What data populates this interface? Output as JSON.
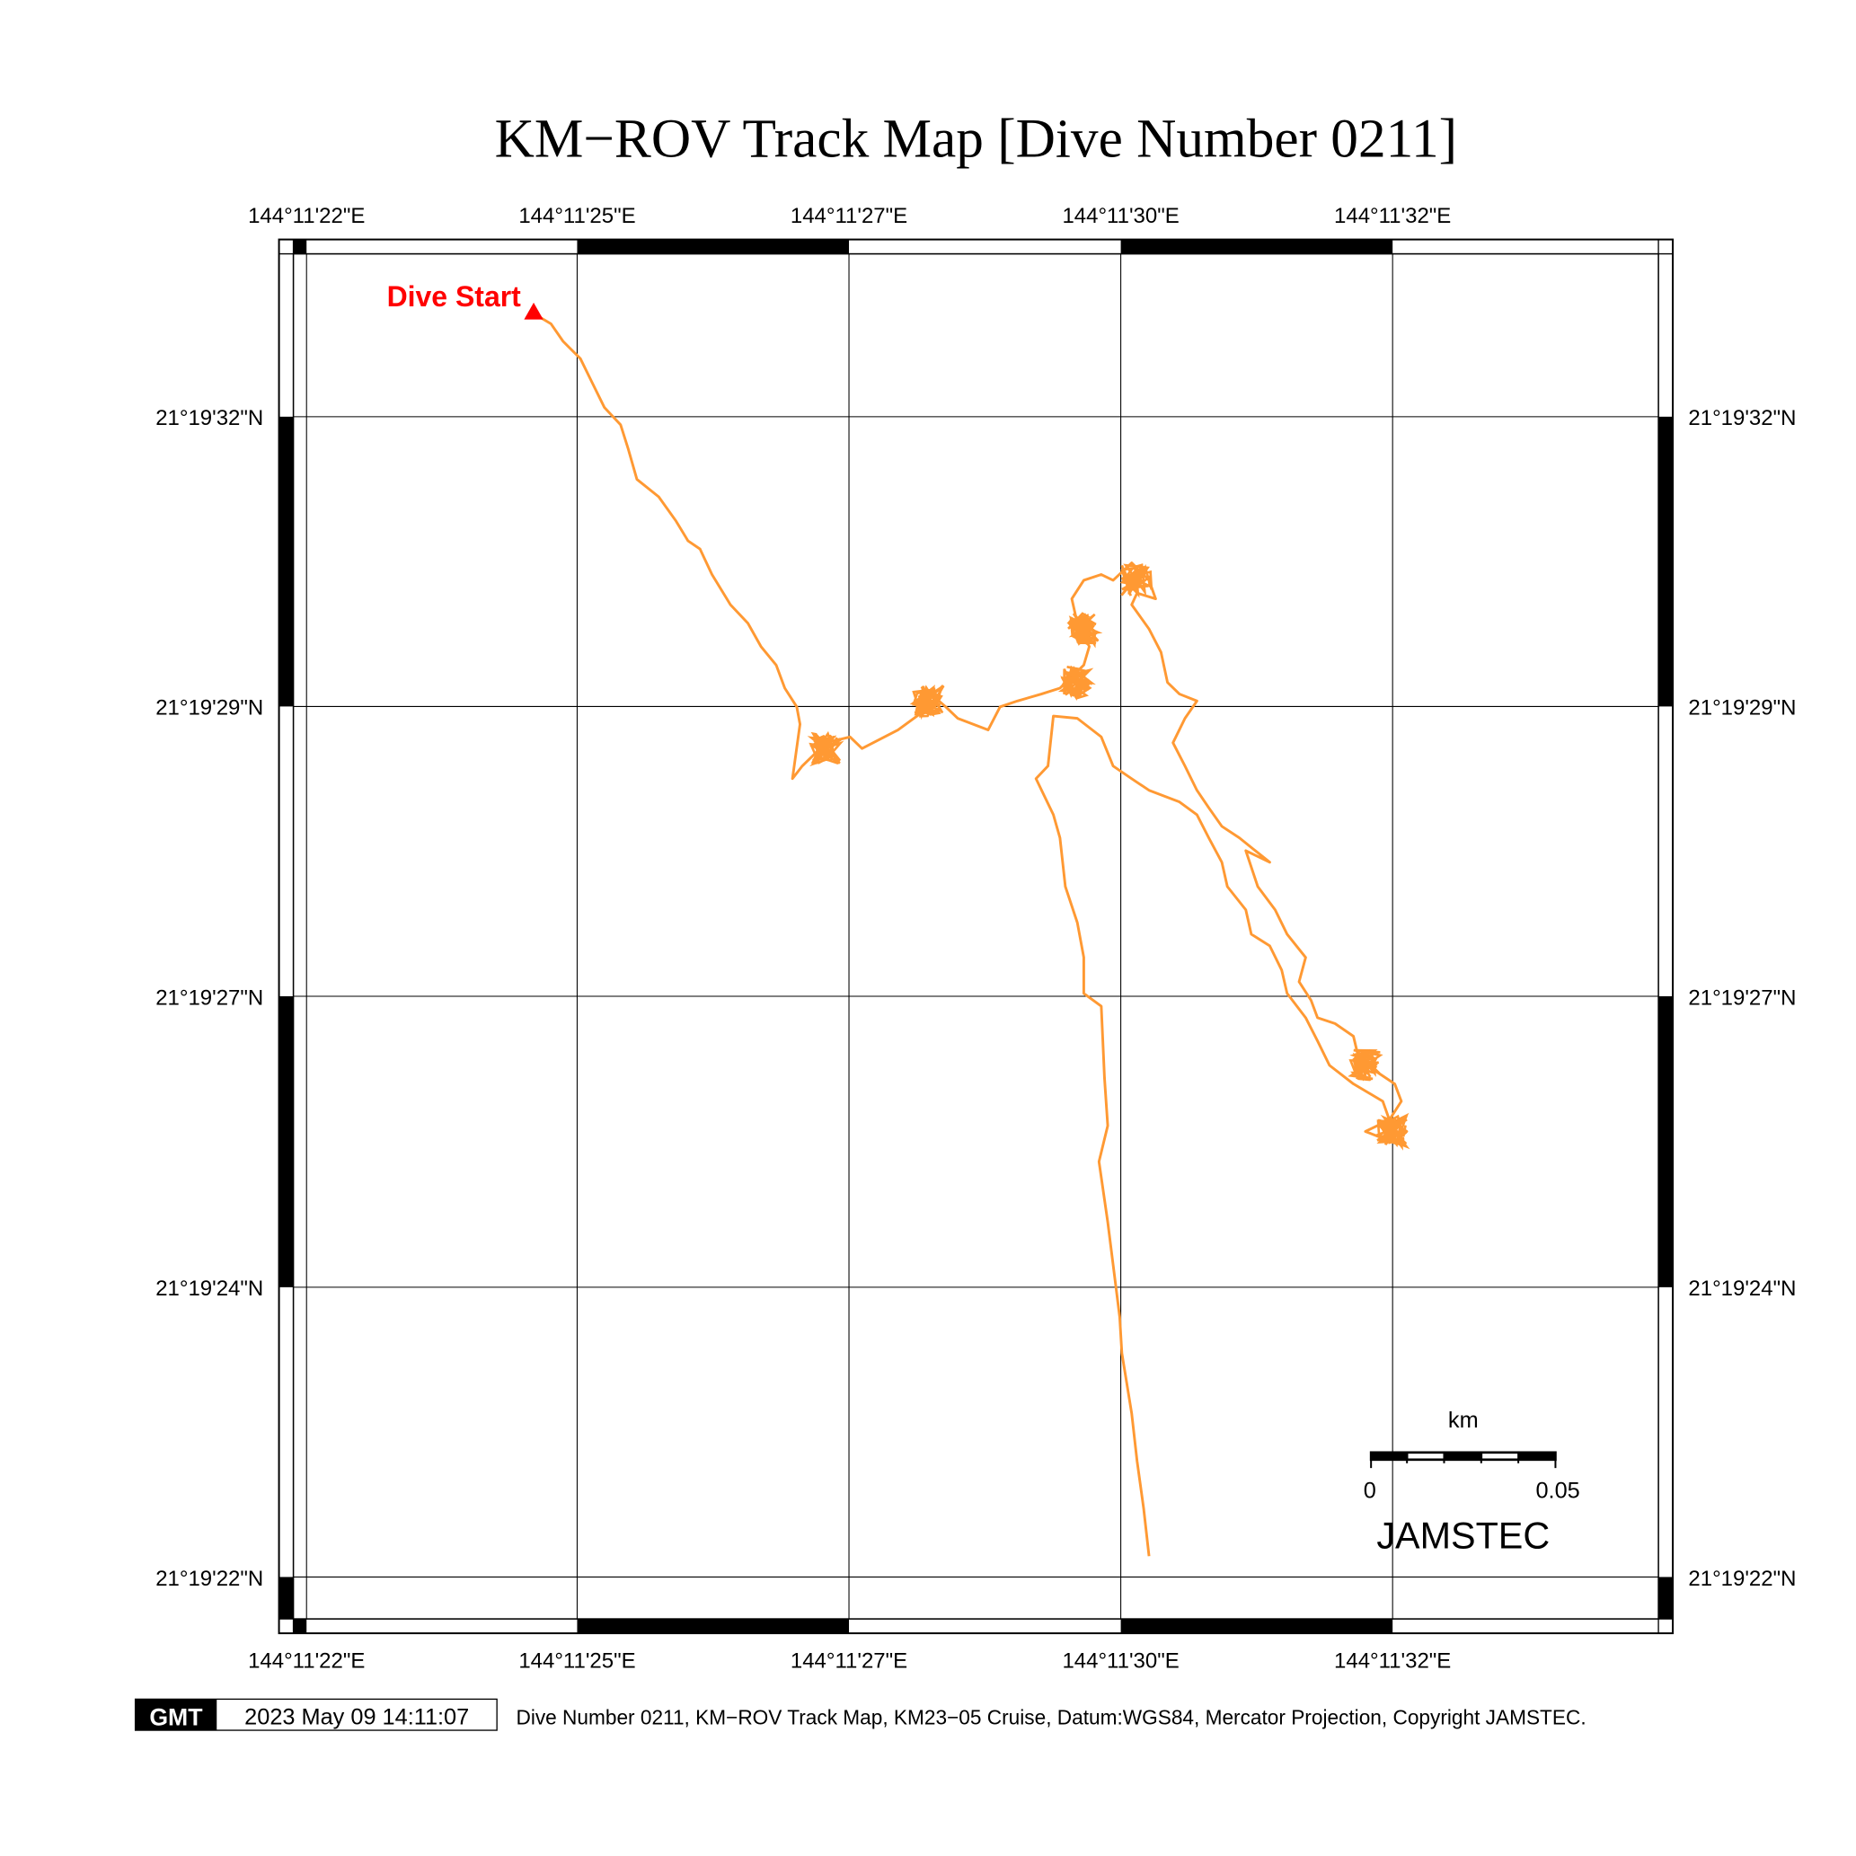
{
  "title": "KM−ROV Track Map [Dive Number 0211]",
  "lon_labels": [
    "144°11'22\"E",
    "144°11'25\"E",
    "144°11'27\"E",
    "144°11'30\"E",
    "144°11'32\"E"
  ],
  "lat_labels": [
    "21°19'32\"N",
    "21°19'29\"N",
    "21°19'27\"N",
    "21°19'24\"N",
    "21°19'22\"N"
  ],
  "start_label": "Dive Start",
  "scale_bar": {
    "unit": "km",
    "min_label": "0",
    "max_label": "0.05"
  },
  "org_label": "JAMSTEC",
  "footer": {
    "logo": "GMT",
    "timestamp": "2023 May 09 14:11:07",
    "caption": "Dive Number 0211, KM−ROV Track Map, KM23−05 Cruise, Datum:WGS84, Mercator Projection, Copyright JAMSTEC."
  },
  "colors": {
    "track": "#ff9933",
    "start_marker": "#ff0000",
    "frame": "#000000"
  },
  "track_units": "seconds past 144°11' E / 21°19' N",
  "track": [
    [
      24.6,
      32.89
    ],
    [
      24.76,
      32.8
    ],
    [
      24.87,
      32.65
    ],
    [
      25.03,
      32.5
    ],
    [
      25.14,
      32.29
    ],
    [
      25.25,
      32.08
    ],
    [
      25.4,
      31.93
    ],
    [
      25.47,
      31.72
    ],
    [
      25.55,
      31.46
    ],
    [
      25.75,
      31.31
    ],
    [
      25.91,
      31.1
    ],
    [
      26.02,
      30.93
    ],
    [
      26.13,
      30.86
    ],
    [
      26.24,
      30.64
    ],
    [
      26.41,
      30.38
    ],
    [
      26.57,
      30.22
    ],
    [
      26.69,
      30.02
    ],
    [
      26.83,
      29.86
    ],
    [
      26.91,
      29.66
    ],
    [
      27.02,
      29.5
    ],
    [
      27.05,
      29.35
    ],
    [
      26.98,
      28.88
    ],
    [
      27.07,
      28.99
    ],
    [
      27.29,
      29.19
    ],
    [
      27.51,
      29.24
    ],
    [
      27.62,
      29.14
    ],
    [
      27.95,
      29.3
    ],
    [
      28.17,
      29.45
    ],
    [
      28.23,
      29.63
    ],
    [
      28.39,
      29.5
    ],
    [
      28.5,
      29.4
    ],
    [
      28.78,
      29.3
    ],
    [
      28.89,
      29.5
    ],
    [
      29.05,
      29.55
    ],
    [
      29.27,
      29.61
    ],
    [
      29.44,
      29.66
    ],
    [
      29.55,
      29.76
    ],
    [
      29.66,
      29.86
    ],
    [
      29.71,
      30.02
    ],
    [
      29.6,
      30.22
    ],
    [
      29.55,
      30.43
    ],
    [
      29.66,
      30.59
    ],
    [
      29.82,
      30.64
    ],
    [
      29.93,
      30.59
    ],
    [
      30.1,
      30.74
    ],
    [
      30.26,
      30.59
    ],
    [
      30.32,
      30.43
    ],
    [
      30.15,
      30.48
    ],
    [
      30.1,
      30.38
    ],
    [
      30.26,
      30.17
    ],
    [
      30.37,
      29.97
    ],
    [
      30.43,
      29.71
    ],
    [
      30.54,
      29.61
    ],
    [
      30.7,
      29.55
    ],
    [
      30.59,
      29.4
    ],
    [
      30.48,
      29.19
    ],
    [
      30.59,
      28.99
    ],
    [
      30.7,
      28.78
    ],
    [
      30.81,
      28.63
    ],
    [
      30.93,
      28.47
    ],
    [
      31.09,
      28.37
    ],
    [
      31.37,
      28.16
    ],
    [
      31.15,
      28.26
    ],
    [
      31.26,
      27.95
    ],
    [
      31.42,
      27.75
    ],
    [
      31.53,
      27.54
    ],
    [
      31.7,
      27.34
    ],
    [
      31.64,
      27.13
    ],
    [
      31.75,
      26.97
    ],
    [
      31.81,
      26.82
    ],
    [
      31.97,
      26.77
    ],
    [
      32.14,
      26.66
    ],
    [
      32.19,
      26.46
    ],
    [
      32.36,
      26.35
    ],
    [
      32.52,
      26.25
    ],
    [
      32.58,
      26.1
    ],
    [
      32.47,
      25.94
    ],
    [
      32.63,
      25.84
    ],
    [
      32.52,
      25.74
    ],
    [
      32.25,
      25.84
    ],
    [
      32.47,
      25.94
    ],
    [
      32.41,
      26.1
    ],
    [
      32.14,
      26.25
    ],
    [
      31.92,
      26.41
    ],
    [
      31.81,
      26.62
    ],
    [
      31.7,
      26.82
    ],
    [
      31.53,
      27.03
    ],
    [
      31.48,
      27.23
    ],
    [
      31.37,
      27.44
    ],
    [
      31.2,
      27.54
    ],
    [
      31.15,
      27.75
    ],
    [
      30.98,
      27.95
    ],
    [
      30.93,
      28.16
    ],
    [
      30.81,
      28.37
    ],
    [
      30.7,
      28.57
    ],
    [
      30.54,
      28.68
    ],
    [
      30.26,
      28.78
    ],
    [
      30.1,
      28.88
    ],
    [
      29.93,
      28.99
    ],
    [
      29.82,
      29.24
    ],
    [
      29.6,
      29.4
    ],
    [
      29.38,
      29.42
    ],
    [
      29.33,
      28.99
    ],
    [
      29.22,
      28.88
    ],
    [
      29.38,
      28.57
    ],
    [
      29.44,
      28.37
    ],
    [
      29.49,
      27.95
    ],
    [
      29.6,
      27.64
    ],
    [
      29.66,
      27.34
    ],
    [
      29.66,
      27.03
    ],
    [
      29.82,
      26.92
    ],
    [
      29.85,
      26.3
    ],
    [
      29.88,
      25.89
    ],
    [
      29.8,
      25.58
    ],
    [
      29.88,
      25.06
    ],
    [
      29.99,
      24.24
    ],
    [
      30.01,
      23.93
    ],
    [
      30.1,
      23.41
    ],
    [
      30.15,
      23.0
    ],
    [
      30.21,
      22.59
    ],
    [
      30.26,
      22.18
    ]
  ],
  "dense_areas": [
    [
      27.29,
      29.14
    ],
    [
      29.6,
      29.71
    ],
    [
      29.66,
      30.17
    ],
    [
      30.15,
      30.59
    ],
    [
      32.49,
      25.84
    ],
    [
      32.25,
      26.41
    ],
    [
      28.23,
      29.55
    ]
  ],
  "start_point": [
    24.6,
    32.89
  ]
}
